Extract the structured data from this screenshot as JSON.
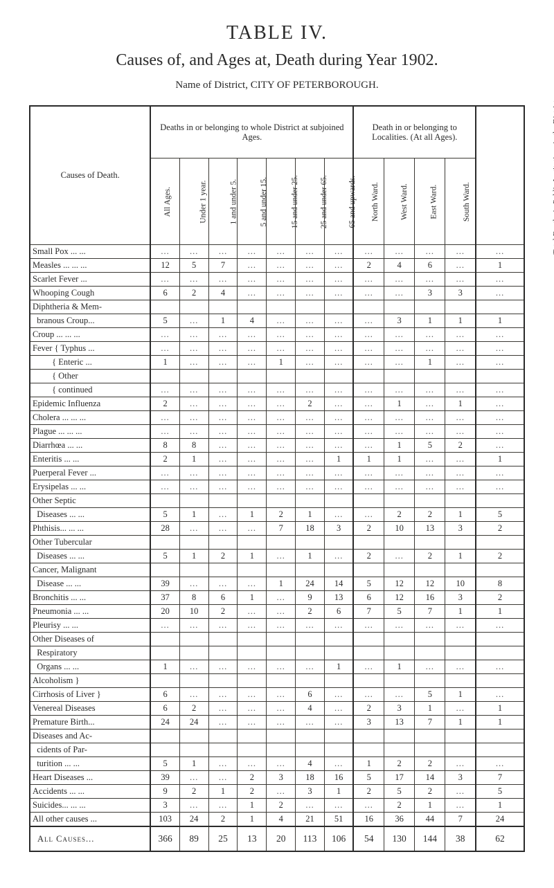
{
  "titles": {
    "table_no": "TABLE IV.",
    "heading": "Causes of, and Ages at, Death during Year 1902.",
    "district": "Name of District, CITY OF PETERBOROUGH."
  },
  "header": {
    "causes_label": "Causes of Death.",
    "group_ages": "Deaths in or belonging to whole District at subjoined Ages.",
    "group_loc": "Death in or belonging to Localities. (At all Ages).",
    "group_total": "Total Deaths in Public Institutions in the District.",
    "age_cols": [
      "All Ages.",
      "Under 1 year.",
      "1 and under 5.",
      "5 and under 15.",
      "15 and under 25.",
      "25 and under 65.",
      "65 and upwards."
    ],
    "loc_cols": [
      "North Ward.",
      "West Ward.",
      "East Ward.",
      "South Ward."
    ]
  },
  "rows": [
    {
      "label": "Small Pox  ...  ...",
      "v": [
        "...",
        "...",
        "...",
        "...",
        "...",
        "...",
        "...",
        "...",
        "...",
        "...",
        "...",
        "..."
      ]
    },
    {
      "label": "Measles ...  ...  ...",
      "v": [
        "12",
        "5",
        "7",
        "...",
        "...",
        "...",
        "...",
        "2",
        "4",
        "6",
        "...",
        "1"
      ]
    },
    {
      "label": "Scarlet Fever    ...",
      "v": [
        "...",
        "...",
        "...",
        "...",
        "...",
        "...",
        "...",
        "...",
        "...",
        "...",
        "...",
        "..."
      ]
    },
    {
      "label": "Whooping Cough",
      "v": [
        "6",
        "2",
        "4",
        "...",
        "...",
        "...",
        "...",
        "...",
        "...",
        "3",
        "3",
        "..."
      ]
    },
    {
      "label": "Diphtheria & Mem-",
      "v": [
        "",
        "",
        "",
        "",
        "",
        "",
        "",
        "",
        "",
        "",
        "",
        ""
      ]
    },
    {
      "label": "  branous Croup...",
      "v": [
        "5",
        "...",
        "1",
        "4",
        "...",
        "...",
        "...",
        "...",
        "3",
        "1",
        "1",
        "1"
      ]
    },
    {
      "label": "Croup  ...  ...  ...",
      "v": [
        "...",
        "...",
        "...",
        "...",
        "...",
        "...",
        "...",
        "...",
        "...",
        "...",
        "...",
        "..."
      ]
    },
    {
      "label": "Fever  { Typhus  ...",
      "v": [
        "...",
        "...",
        "...",
        "...",
        "...",
        "...",
        "...",
        "...",
        "...",
        "...",
        "...",
        "..."
      ]
    },
    {
      "label": "         { Enteric ...",
      "v": [
        "1",
        "...",
        "...",
        "...",
        "1",
        "...",
        "...",
        "...",
        "...",
        "1",
        "...",
        "..."
      ]
    },
    {
      "label": "         { Other",
      "v": [
        "",
        "",
        "",
        "",
        "",
        "",
        "",
        "",
        "",
        "",
        "",
        ""
      ]
    },
    {
      "label": "         {  continued",
      "v": [
        "...",
        "...",
        "...",
        "...",
        "...",
        "...",
        "...",
        "...",
        "...",
        "...",
        "...",
        "..."
      ]
    },
    {
      "label": "Epidemic Influenza",
      "v": [
        "2",
        "...",
        "...",
        "...",
        "...",
        "2",
        "...",
        "...",
        "1",
        "...",
        "1",
        "..."
      ]
    },
    {
      "label": "Cholera ...  ...  ...",
      "v": [
        "...",
        "...",
        "...",
        "...",
        "...",
        "...",
        "...",
        "...",
        "...",
        "...",
        "...",
        "..."
      ]
    },
    {
      "label": "Plague  ...  ...  ...",
      "v": [
        "...",
        "...",
        "...",
        "...",
        "...",
        "...",
        "...",
        "...",
        "...",
        "...",
        "...",
        "..."
      ]
    },
    {
      "label": "Diarrhœa    ...  ...",
      "v": [
        "8",
        "8",
        "...",
        "...",
        "...",
        "...",
        "...",
        "...",
        "1",
        "5",
        "2",
        "..."
      ]
    },
    {
      "label": "Enteritis      ...  ...",
      "v": [
        "2",
        "1",
        "...",
        "...",
        "...",
        "...",
        "1",
        "1",
        "1",
        "...",
        "...",
        "1"
      ]
    },
    {
      "label": "Puerperal Fever ...",
      "v": [
        "...",
        "...",
        "...",
        "...",
        "...",
        "...",
        "...",
        "...",
        "...",
        "...",
        "...",
        "..."
      ]
    },
    {
      "label": "Erysipelas  ...  ...",
      "v": [
        "...",
        "...",
        "...",
        "...",
        "...",
        "...",
        "...",
        "...",
        "...",
        "...",
        "...",
        "..."
      ]
    },
    {
      "label": "Other Septic",
      "v": [
        "",
        "",
        "",
        "",
        "",
        "",
        "",
        "",
        "",
        "",
        "",
        ""
      ]
    },
    {
      "label": "  Diseases  ...  ...",
      "v": [
        "5",
        "1",
        "...",
        "1",
        "2",
        "1",
        "...",
        "...",
        "2",
        "2",
        "1",
        "5"
      ]
    },
    {
      "label": "Phthisis...  ...  ...",
      "v": [
        "28",
        "...",
        "...",
        "...",
        "7",
        "18",
        "3",
        "2",
        "10",
        "13",
        "3",
        "2"
      ]
    },
    {
      "label": "Other Tubercular",
      "v": [
        "",
        "",
        "",
        "",
        "",
        "",
        "",
        "",
        "",
        "",
        "",
        ""
      ]
    },
    {
      "label": "  Diseases  ...  ...",
      "v": [
        "5",
        "1",
        "2",
        "1",
        "...",
        "1",
        "...",
        "2",
        "...",
        "2",
        "1",
        "2"
      ]
    },
    {
      "label": "Cancer, Malignant",
      "v": [
        "",
        "",
        "",
        "",
        "",
        "",
        "",
        "",
        "",
        "",
        "",
        ""
      ]
    },
    {
      "label": "  Disease    ...  ...",
      "v": [
        "39",
        "...",
        "...",
        "...",
        "1",
        "24",
        "14",
        "5",
        "12",
        "12",
        "10",
        "8"
      ]
    },
    {
      "label": "Bronchitis   ...  ...",
      "v": [
        "37",
        "8",
        "6",
        "1",
        "...",
        "9",
        "13",
        "6",
        "12",
        "16",
        "3",
        "2"
      ]
    },
    {
      "label": "Pneumonia ...  ...",
      "v": [
        "20",
        "10",
        "2",
        "...",
        "...",
        "2",
        "6",
        "7",
        "5",
        "7",
        "1",
        "1"
      ]
    },
    {
      "label": "Pleurisy       ...  ...",
      "v": [
        "...",
        "...",
        "...",
        "...",
        "...",
        "...",
        "...",
        "...",
        "...",
        "...",
        "...",
        "..."
      ]
    },
    {
      "label": "Other Diseases of",
      "v": [
        "",
        "",
        "",
        "",
        "",
        "",
        "",
        "",
        "",
        "",
        "",
        ""
      ]
    },
    {
      "label": "  Respiratory",
      "v": [
        "",
        "",
        "",
        "",
        "",
        "",
        "",
        "",
        "",
        "",
        "",
        ""
      ]
    },
    {
      "label": "  Organs     ...  ...",
      "v": [
        "1",
        "...",
        "...",
        "...",
        "...",
        "...",
        "1",
        "...",
        "1",
        "...",
        "...",
        "..."
      ]
    },
    {
      "label": "Alcoholism        }",
      "v": [
        "",
        "",
        "",
        "",
        "",
        "",
        "",
        "",
        "",
        "",
        "",
        ""
      ]
    },
    {
      "label": "Cirrhosis of Liver }",
      "v": [
        "6",
        "...",
        "...",
        "...",
        "...",
        "6",
        "...",
        "...",
        "...",
        "5",
        "1",
        "..."
      ]
    },
    {
      "label": "Venereal Diseases",
      "v": [
        "6",
        "2",
        "...",
        "...",
        "...",
        "4",
        "...",
        "2",
        "3",
        "1",
        "...",
        "1"
      ]
    },
    {
      "label": "Premature Birth...",
      "v": [
        "24",
        "24",
        "...",
        "...",
        "...",
        "...",
        "...",
        "3",
        "13",
        "7",
        "1",
        "1"
      ]
    },
    {
      "label": "Diseases and Ac-",
      "v": [
        "",
        "",
        "",
        "",
        "",
        "",
        "",
        "",
        "",
        "",
        "",
        ""
      ]
    },
    {
      "label": "  cidents of Par-",
      "v": [
        "",
        "",
        "",
        "",
        "",
        "",
        "",
        "",
        "",
        "",
        "",
        ""
      ]
    },
    {
      "label": "  turition     ...  ...",
      "v": [
        "5",
        "1",
        "...",
        "...",
        "...",
        "4",
        "...",
        "1",
        "2",
        "2",
        "...",
        "..."
      ]
    },
    {
      "label": "Heart Diseases  ...",
      "v": [
        "39",
        "...",
        "...",
        "2",
        "3",
        "18",
        "16",
        "5",
        "17",
        "14",
        "3",
        "7"
      ]
    },
    {
      "label": "Accidents     ...  ...",
      "v": [
        "9",
        "2",
        "1",
        "2",
        "...",
        "3",
        "1",
        "2",
        "5",
        "2",
        "...",
        "5"
      ]
    },
    {
      "label": "Suicides...  ...  ...",
      "v": [
        "3",
        "...",
        "...",
        "1",
        "2",
        "...",
        "...",
        "...",
        "2",
        "1",
        "...",
        "1"
      ]
    },
    {
      "label": "All other causes ...",
      "v": [
        "103",
        "24",
        "2",
        "1",
        "4",
        "21",
        "51",
        "16",
        "36",
        "44",
        "7",
        "24"
      ]
    }
  ],
  "totals": {
    "label": "All Causes...",
    "v": [
      "366",
      "89",
      "25",
      "13",
      "20",
      "113",
      "106",
      "54",
      "130",
      "144",
      "38",
      "62"
    ]
  },
  "style": {
    "page_bg": "#ffffff",
    "ink": "#2a2a2a",
    "rule": "#3a3833",
    "heavy_rule": "#2a2a2a",
    "font_family": "Times New Roman, Georgia, serif",
    "title_fontsize_pt": 21,
    "subtitle_fontsize_pt": 18,
    "body_fontsize_pt": 9,
    "rot_label_fontsize_pt": 8.5
  }
}
